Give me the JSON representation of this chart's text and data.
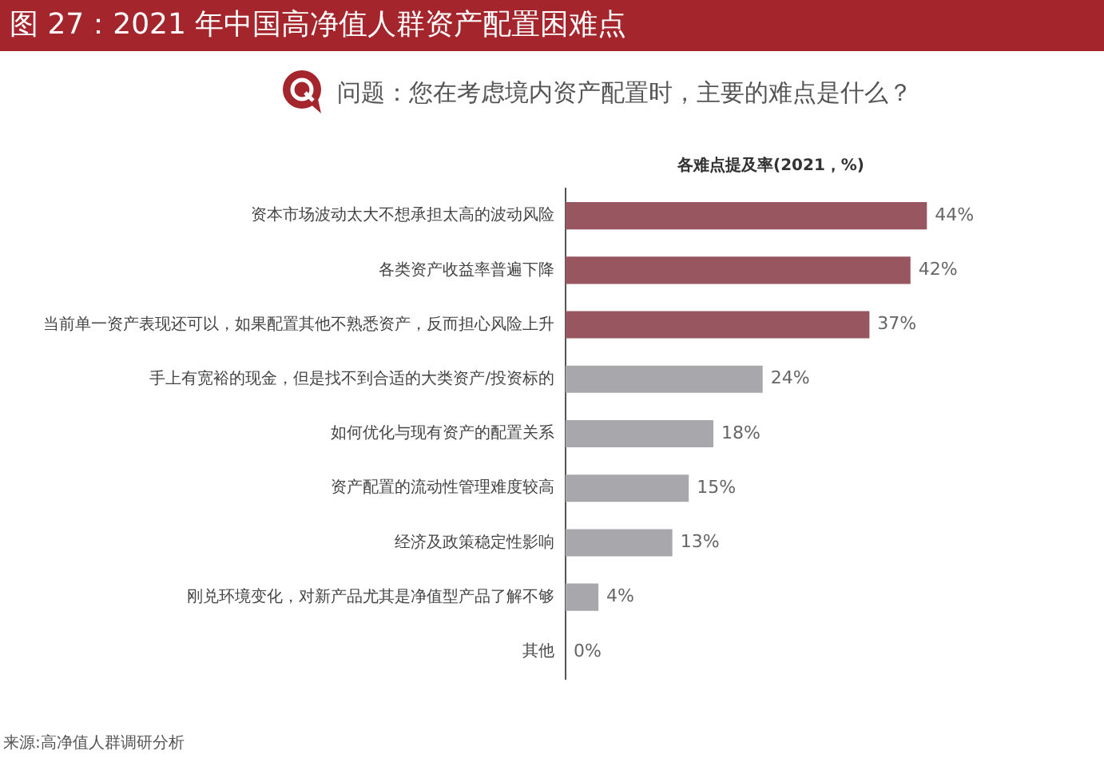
{
  "chart_data": {
    "type": "bar",
    "orientation": "horizontal",
    "title": "图 27：2021 年中国高净值人群资产配置困难点",
    "subtitle": "问题：您在考虑境内资产配置时，主要的难点是什么？",
    "xlabel": "各难点提及率(2021，%)",
    "categories": [
      "资本市场波动太大不想承担太高的波动风险",
      "各类资产收益率普遍下降",
      "当前单一资产表现还可以，如果配置其他不熟悉资产，反而担心风险上升",
      "手上有宽裕的现金，但是找不到合适的大类资产/投资标的",
      "如何优化与现有资产的配置关系",
      "资产配置的流动性管理难度较高",
      "经济及政策稳定性影响",
      "刚兑环境变化，对新产品尤其是净值型产品了解不够",
      "其他"
    ],
    "values": [
      44,
      42,
      37,
      24,
      18,
      15,
      13,
      4,
      0
    ],
    "value_labels": [
      "44%",
      "42%",
      "37%",
      "24%",
      "18%",
      "15%",
      "13%",
      "4%",
      "0%"
    ],
    "colors": [
      "#985661",
      "#985661",
      "#985661",
      "#a8a8ac",
      "#a8a8ac",
      "#a8a8ac",
      "#a8a8ac",
      "#a8a8ac",
      "#a8a8ac"
    ],
    "grid": false,
    "tick_labels": "y",
    "annotations": [
      "来源:高净值人群调研分析"
    ]
  }
}
